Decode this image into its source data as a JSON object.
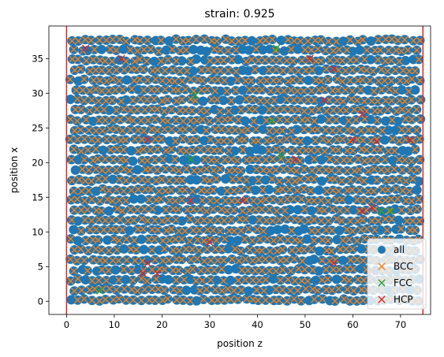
{
  "chart_data": {
    "type": "scatter",
    "title": "strain: 0.925",
    "xlabel": "position z",
    "ylabel": "position x",
    "xlim": [
      -3.7,
      76.3
    ],
    "ylim": [
      -1.9,
      39.7
    ],
    "xticks": [
      0,
      10,
      20,
      30,
      40,
      50,
      60,
      70
    ],
    "yticks": [
      0,
      5,
      10,
      15,
      20,
      25,
      30,
      35
    ],
    "grid": false,
    "legend_position": "lower-right",
    "vlines": [
      {
        "x": 0,
        "color": "#d62728"
      },
      {
        "x": 74.7,
        "color": "#d62728"
      }
    ],
    "lattice": {
      "x_min": 1.0,
      "x_max": 74.0,
      "x_step": 1.46,
      "y_min": 0.2,
      "y_max": 38.0,
      "y_step": 1.44
    },
    "series": [
      {
        "name": "all",
        "marker": "o",
        "color": "#1f77b4"
      },
      {
        "name": "BCC",
        "marker": "x",
        "color": "#ff7f0e"
      },
      {
        "name": "FCC",
        "marker": "x",
        "color": "#2ca02c",
        "points": [
          [
            7,
            1.5
          ],
          [
            44,
            36.5
          ],
          [
            43,
            26
          ],
          [
            26,
            20.5
          ],
          [
            66,
            13
          ],
          [
            68,
            13
          ],
          [
            27,
            29.7
          ],
          [
            45,
            21
          ]
        ]
      },
      {
        "name": "HCP",
        "marker": "x",
        "color": "#d62728",
        "points": [
          [
            4,
            36.5
          ],
          [
            11.5,
            35
          ],
          [
            51,
            35
          ],
          [
            56,
            33.5
          ],
          [
            54,
            29
          ],
          [
            17,
            23.3
          ],
          [
            60,
            23.3
          ],
          [
            72,
            23.3
          ],
          [
            65,
            23
          ],
          [
            37,
            14.5
          ],
          [
            26,
            14.5
          ],
          [
            62,
            13
          ],
          [
            64,
            13.5
          ],
          [
            17,
            5.5
          ],
          [
            16,
            4
          ],
          [
            19,
            4
          ],
          [
            56,
            5.5
          ],
          [
            64,
            4.3
          ],
          [
            48,
            20.5
          ],
          [
            30,
            8.5
          ],
          [
            62,
            27
          ]
        ]
      }
    ]
  }
}
